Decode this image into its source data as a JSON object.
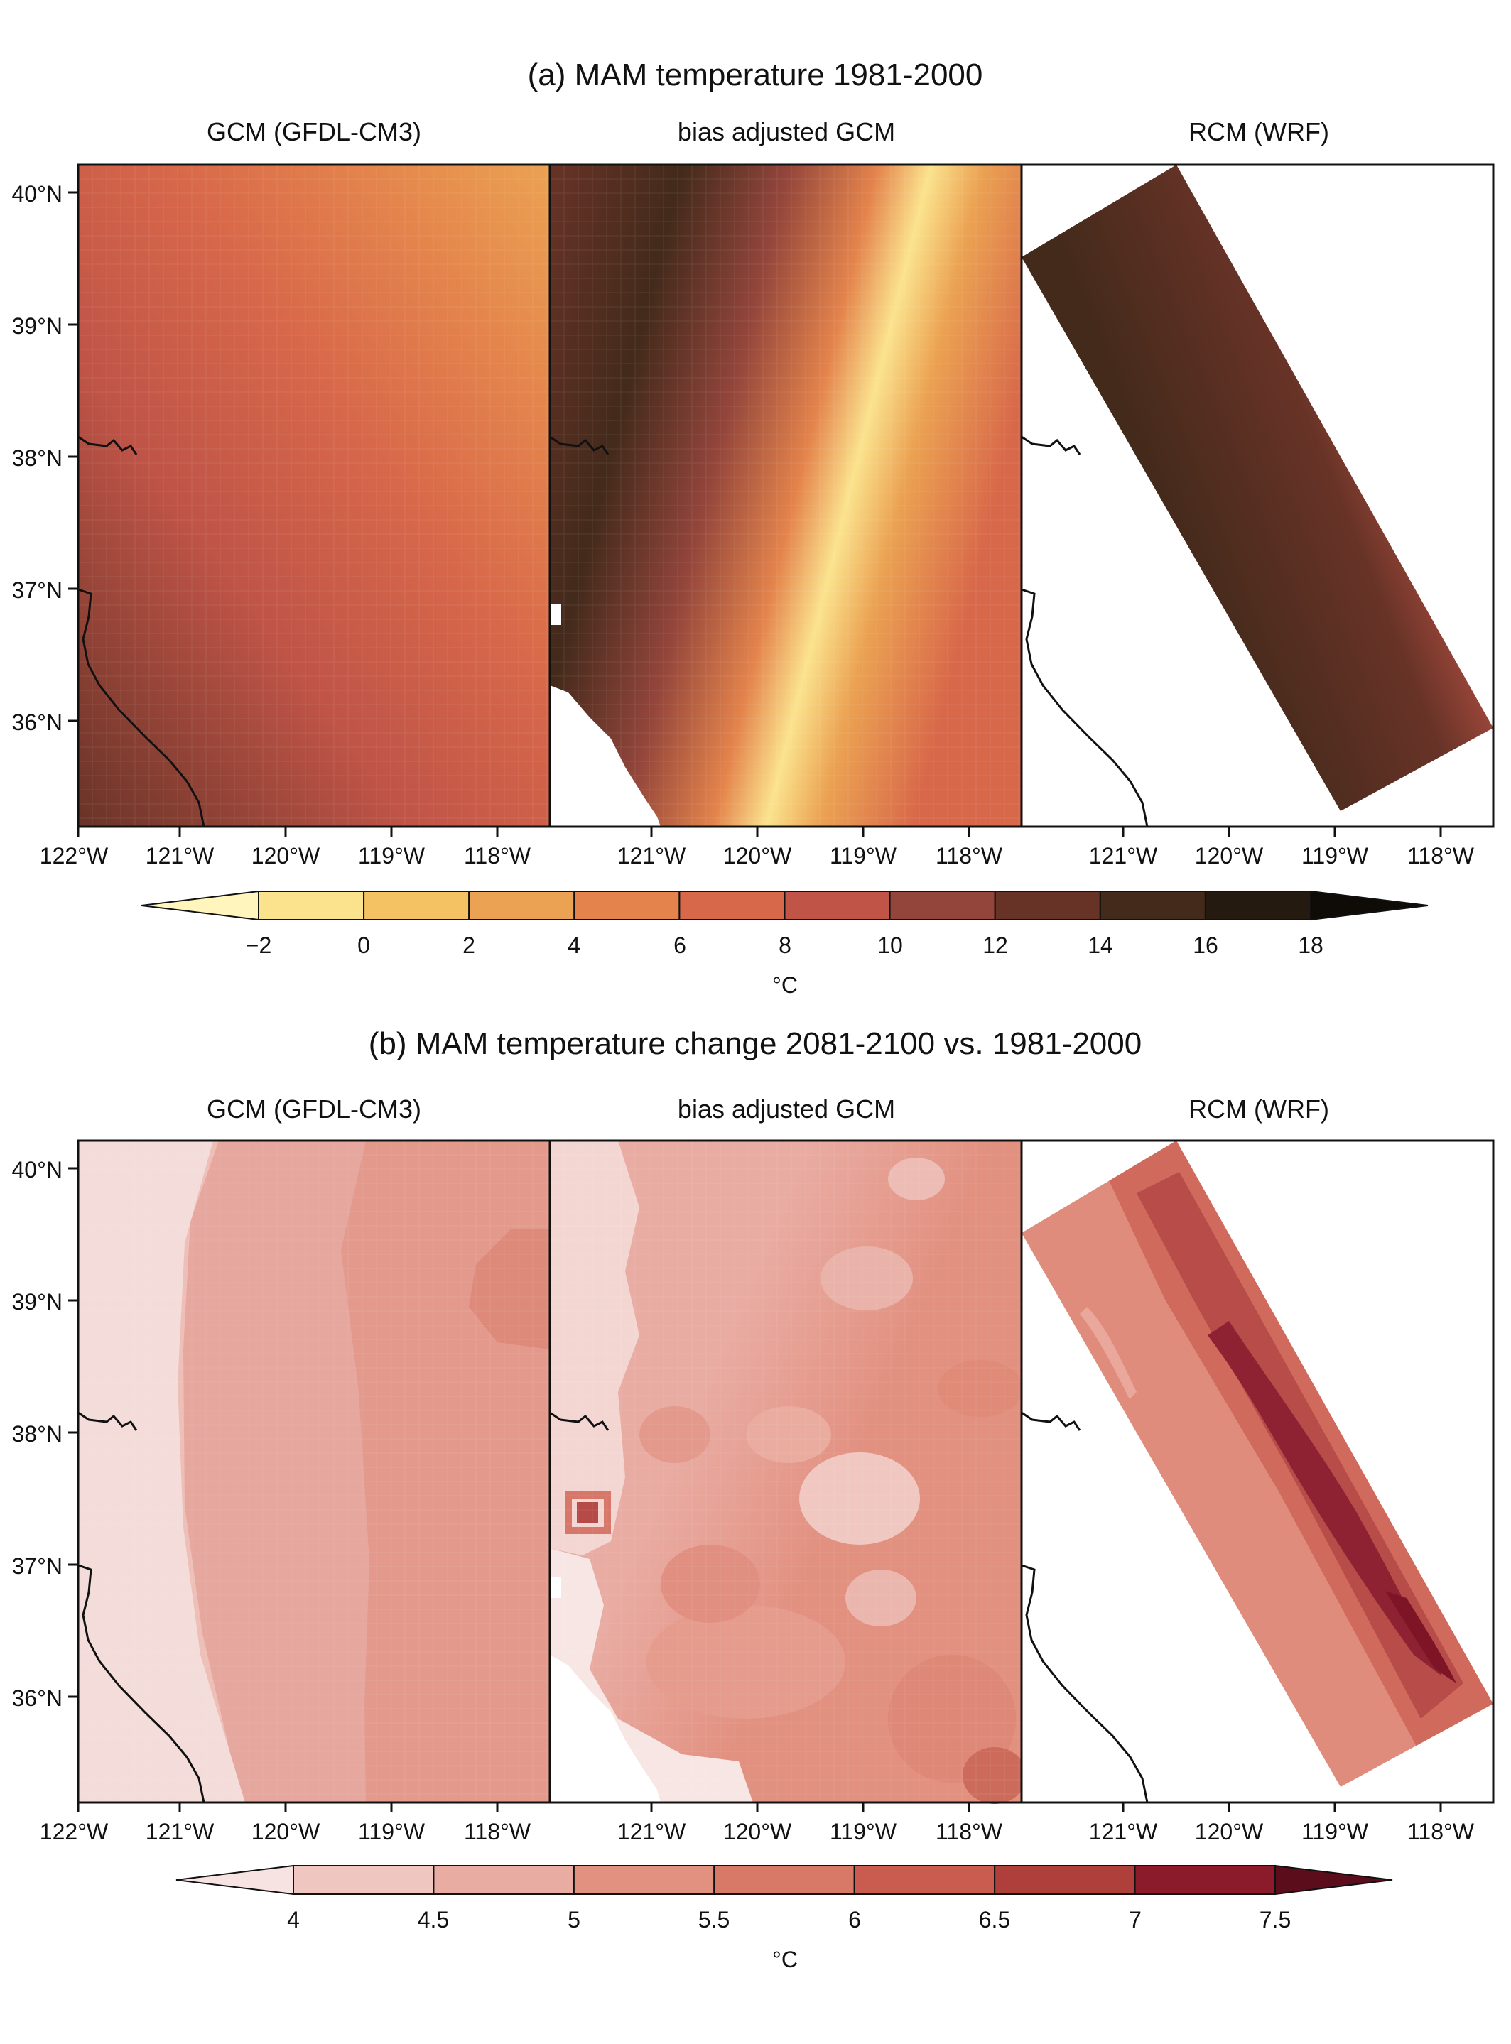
{
  "figure": {
    "panel_a": {
      "title": "(a) MAM temperature 1981-2000",
      "columns": [
        "GCM (GFDL-CM3)",
        "bias adjusted GCM",
        "RCM (WRF)"
      ],
      "colorbar": {
        "ticks": [
          "−2",
          "0",
          "2",
          "4",
          "6",
          "8",
          "10",
          "12",
          "14",
          "16",
          "18"
        ],
        "unit": "°C",
        "colors": [
          "#fff5bd",
          "#fbe38e",
          "#f4c263",
          "#eba252",
          "#e4844c",
          "#d8684a",
          "#bf5447",
          "#93453b",
          "#683327",
          "#432a1b",
          "#241a0f",
          "#0f0c08"
        ]
      }
    },
    "panel_b": {
      "title": "(b) MAM temperature change 2081-2100 vs. 1981-2000",
      "columns": [
        "GCM (GFDL-CM3)",
        "bias adjusted GCM",
        "RCM (WRF)"
      ],
      "colorbar": {
        "ticks": [
          "4",
          "4.5",
          "5",
          "5.5",
          "6",
          "6.5",
          "7",
          "7.5"
        ],
        "unit": "°C",
        "colors": [
          "#f7e3e2",
          "#f0c6c1",
          "#e9aca3",
          "#e2907f",
          "#d87968",
          "#c95c4f",
          "#af3f3b",
          "#8b1a2a",
          "#5c0d1b"
        ]
      }
    },
    "lat_labels": [
      "40°N",
      "39°N",
      "38°N",
      "37°N",
      "36°N"
    ],
    "lon_labels_left": [
      "122°W",
      "121°W",
      "120°W",
      "119°W",
      "118°W"
    ],
    "lon_labels_right": [
      "121°W",
      "120°W",
      "119°W",
      "118°W"
    ]
  }
}
